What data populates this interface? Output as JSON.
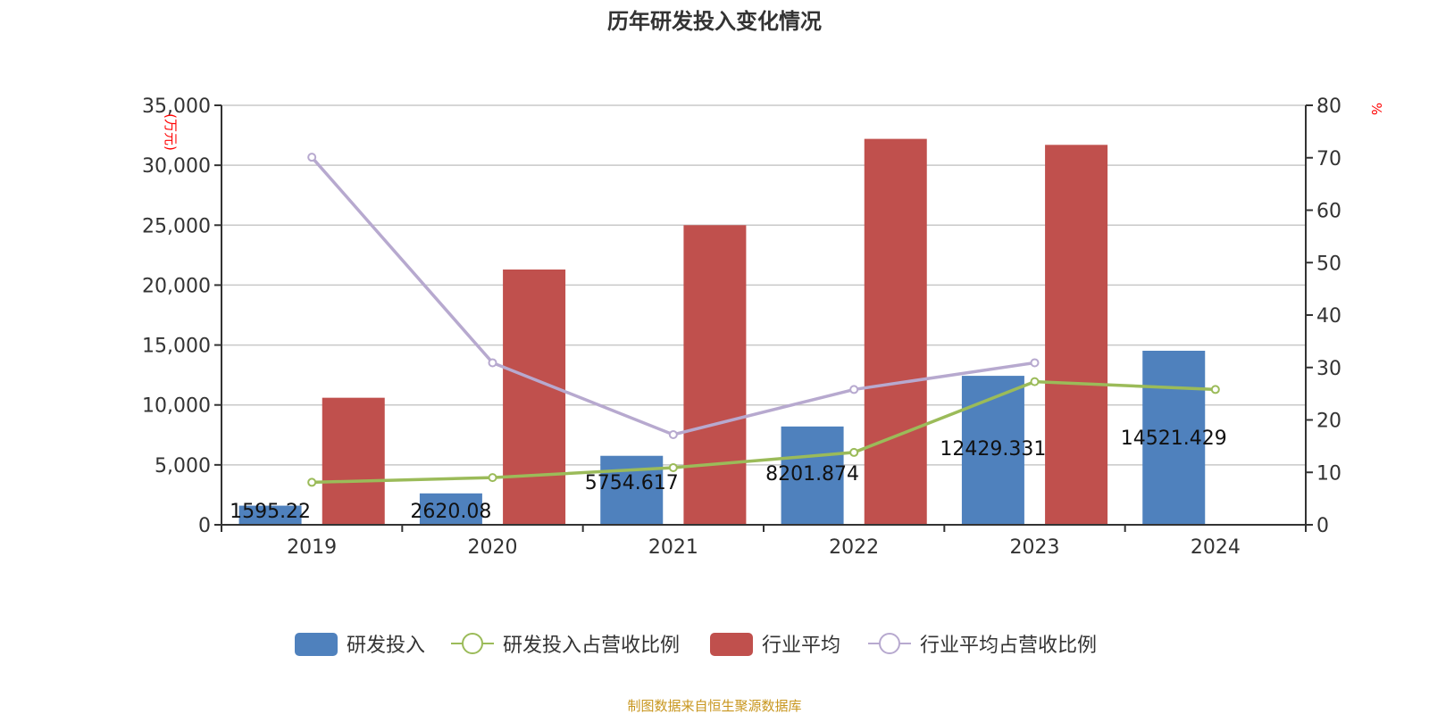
{
  "chart_data": {
    "type": "bar",
    "title": "历年研发投入变化情况",
    "categories": [
      "2019",
      "2020",
      "2021",
      "2022",
      "2023",
      "2024"
    ],
    "ylabel_left": "(万元)",
    "ylabel_right": "%",
    "ylim_left": [
      0,
      35000
    ],
    "ylim_right": [
      0,
      80
    ],
    "yticks_left": [
      "0",
      "5,000",
      "10,000",
      "15,000",
      "20,000",
      "25,000",
      "30,000",
      "35,000"
    ],
    "yticks_right": [
      "0",
      "10",
      "20",
      "30",
      "40",
      "50",
      "60",
      "70",
      "80"
    ],
    "grid": true,
    "legend_position": "bottom",
    "series": [
      {
        "name": "研发投入",
        "type": "bar",
        "axis": "left",
        "color": "#4f81bd",
        "values": [
          1595.22,
          2620.08,
          5754.617,
          8201.874,
          12429.331,
          14521.429
        ],
        "labels": [
          "1595.22",
          "2620.08",
          "5754.617",
          "8201.874",
          "12429.331",
          "14521.429"
        ]
      },
      {
        "name": "研发投入占营收比例",
        "type": "line",
        "axis": "right",
        "color": "#9bbb59",
        "values": [
          8.1,
          9.0,
          10.9,
          13.8,
          27.3,
          25.8
        ]
      },
      {
        "name": "行业平均",
        "type": "bar",
        "axis": "left",
        "color": "#c0504d",
        "values": [
          10600,
          21300,
          25000,
          32200,
          31700,
          null
        ]
      },
      {
        "name": "行业平均占营收比例",
        "type": "line",
        "axis": "right",
        "color": "#b7a9cf",
        "values": [
          70.1,
          30.9,
          17.2,
          25.8,
          30.9,
          null
        ]
      }
    ]
  },
  "footer": {
    "source": "制图数据来自恒生聚源数据库"
  }
}
